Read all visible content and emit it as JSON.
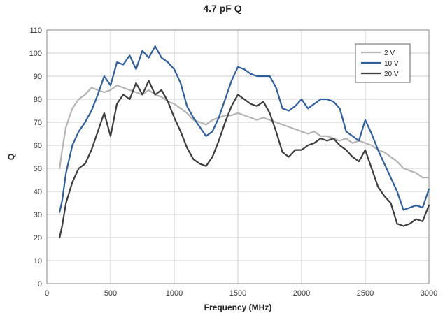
{
  "chart_data": {
    "type": "line",
    "title": "4.7 pF Q",
    "xlabel": "Frequency (MHz)",
    "ylabel": "Q",
    "xlim": [
      0,
      3000
    ],
    "ylim": [
      0,
      110
    ],
    "xticks": [
      0,
      500,
      1000,
      1500,
      2000,
      2500,
      3000
    ],
    "yticks": [
      0,
      10,
      20,
      30,
      40,
      50,
      60,
      70,
      80,
      90,
      100,
      110
    ],
    "grid": true,
    "legend_position": "top-right",
    "series": [
      {
        "name": "2 V",
        "color": "#b4b4b4",
        "x": [
          100,
          120,
          150,
          200,
          250,
          300,
          350,
          400,
          450,
          500,
          550,
          600,
          650,
          700,
          750,
          800,
          850,
          900,
          950,
          1000,
          1050,
          1100,
          1150,
          1200,
          1250,
          1300,
          1350,
          1400,
          1450,
          1500,
          1550,
          1600,
          1650,
          1700,
          1750,
          1800,
          1850,
          1900,
          1950,
          2000,
          2050,
          2100,
          2150,
          2200,
          2250,
          2300,
          2350,
          2400,
          2450,
          2500,
          2550,
          2600,
          2650,
          2700,
          2750,
          2800,
          2850,
          2900,
          2950,
          3000
        ],
        "y": [
          50,
          58,
          68,
          76,
          80,
          82,
          85,
          84,
          83,
          84,
          86,
          85,
          84,
          83,
          82,
          84,
          82,
          81,
          79,
          78,
          76,
          74,
          71,
          70,
          69,
          71,
          72,
          73,
          73,
          74,
          73,
          72,
          71,
          72,
          71,
          70,
          69,
          68,
          67,
          66,
          65,
          66,
          64,
          64,
          63,
          62,
          63,
          61,
          62,
          61,
          60,
          58,
          57,
          55,
          53,
          50,
          49,
          48,
          46,
          46
        ]
      },
      {
        "name": "10 V",
        "color": "#2e5e9c",
        "x": [
          100,
          120,
          150,
          200,
          250,
          300,
          350,
          400,
          450,
          500,
          550,
          600,
          650,
          700,
          750,
          800,
          850,
          900,
          950,
          1000,
          1050,
          1100,
          1150,
          1200,
          1250,
          1300,
          1350,
          1400,
          1450,
          1500,
          1550,
          1600,
          1650,
          1700,
          1750,
          1800,
          1850,
          1900,
          1950,
          2000,
          2050,
          2100,
          2150,
          2200,
          2250,
          2300,
          2350,
          2400,
          2450,
          2500,
          2550,
          2600,
          2650,
          2700,
          2750,
          2800,
          2850,
          2900,
          2950,
          3000
        ],
        "y": [
          31,
          36,
          48,
          60,
          66,
          70,
          75,
          82,
          90,
          86,
          96,
          95,
          99,
          93,
          101,
          98,
          103,
          98,
          96,
          93,
          87,
          77,
          72,
          68,
          64,
          66,
          72,
          80,
          88,
          94,
          93,
          91,
          90,
          90,
          90,
          85,
          76,
          75,
          77,
          80,
          76,
          78,
          80,
          80,
          79,
          76,
          66,
          64,
          62,
          71,
          65,
          58,
          52,
          46,
          40,
          32,
          33,
          34,
          33,
          41
        ]
      },
      {
        "name": "20 V",
        "color": "#3c3c3c",
        "x": [
          100,
          120,
          150,
          200,
          250,
          300,
          350,
          400,
          450,
          500,
          550,
          600,
          650,
          700,
          750,
          800,
          850,
          900,
          950,
          1000,
          1050,
          1100,
          1150,
          1200,
          1250,
          1300,
          1350,
          1400,
          1450,
          1500,
          1550,
          1600,
          1650,
          1700,
          1750,
          1800,
          1850,
          1900,
          1950,
          2000,
          2050,
          2100,
          2150,
          2200,
          2250,
          2300,
          2350,
          2400,
          2450,
          2500,
          2550,
          2600,
          2650,
          2700,
          2750,
          2800,
          2850,
          2900,
          2950,
          3000
        ],
        "y": [
          20,
          25,
          35,
          44,
          50,
          52,
          58,
          66,
          74,
          64,
          78,
          82,
          80,
          87,
          82,
          88,
          82,
          84,
          79,
          72,
          66,
          59,
          54,
          52,
          51,
          55,
          62,
          70,
          77,
          82,
          80,
          78,
          77,
          79,
          74,
          66,
          57,
          55,
          58,
          58,
          60,
          61,
          63,
          62,
          63,
          60,
          58,
          55,
          53,
          58,
          50,
          42,
          38,
          35,
          26,
          25,
          26,
          28,
          27,
          34
        ]
      }
    ]
  }
}
